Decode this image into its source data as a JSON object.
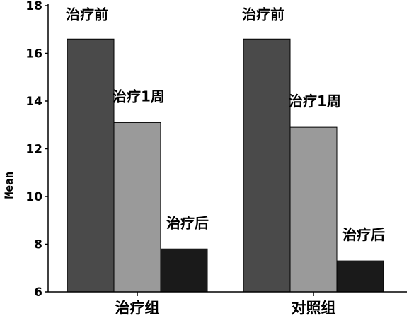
{
  "chart_data": {
    "type": "bar",
    "title": "",
    "xlabel": "",
    "ylabel": "Mean",
    "ylim": [
      6,
      18
    ],
    "yticks": [
      6,
      8,
      10,
      12,
      14,
      16,
      18
    ],
    "grid": false,
    "legend": "none",
    "categories": [
      "治疗组",
      "对照组"
    ],
    "series": [
      {
        "name": "治疗前",
        "values": [
          16.6,
          16.6
        ],
        "color": "#4a4a4a"
      },
      {
        "name": "治疗1周",
        "values": [
          13.1,
          12.9
        ],
        "color": "#9a9a9a"
      },
      {
        "name": "治疗后",
        "values": [
          7.8,
          7.3
        ],
        "color": "#1a1a1a"
      }
    ]
  }
}
